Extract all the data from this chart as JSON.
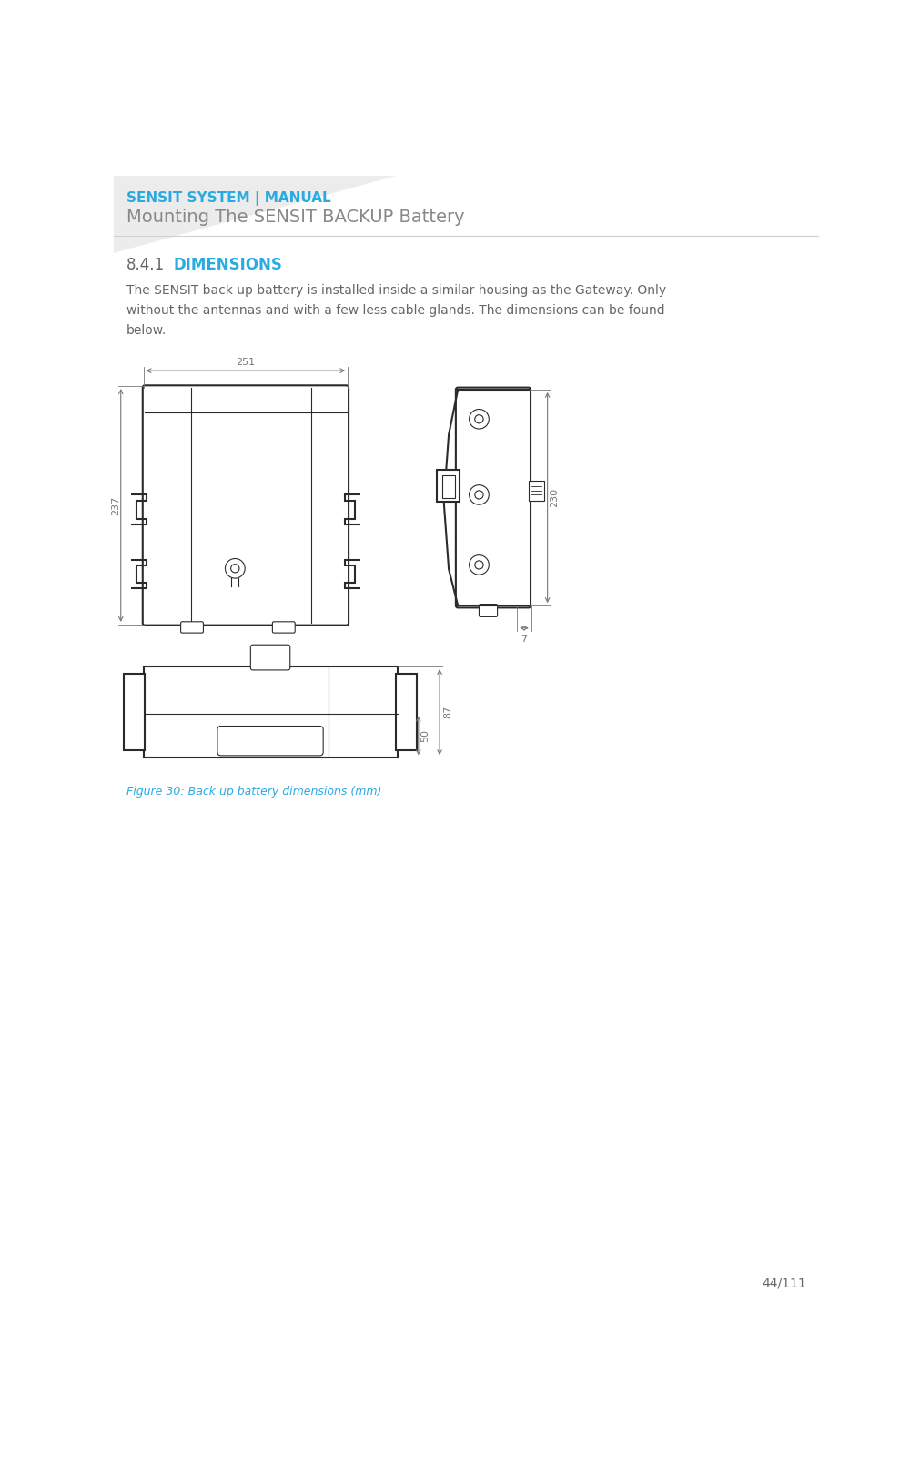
{
  "header_text": "SENSIT SYSTEM | MANUAL",
  "subheader_text": "Mounting The SENSIT BACKUP Battery",
  "header_color": "#29abe2",
  "subheader_color": "#888888",
  "section_number": "8.4.1",
  "section_title": "DIMENSIONS",
  "body_text": "The SENSIT back up battery is installed inside a similar housing as the Gateway. Only\nwithout the antennas and with a few less cable glands. The dimensions can be found\nbelow.",
  "figure_caption": "Figure 30: Back up battery dimensions (mm)",
  "page_number": "44/111",
  "bg_color": "#ffffff",
  "text_color": "#666666",
  "drawing_color": "#2a2a2a",
  "dim_color": "#777777",
  "line_color": "#444444"
}
